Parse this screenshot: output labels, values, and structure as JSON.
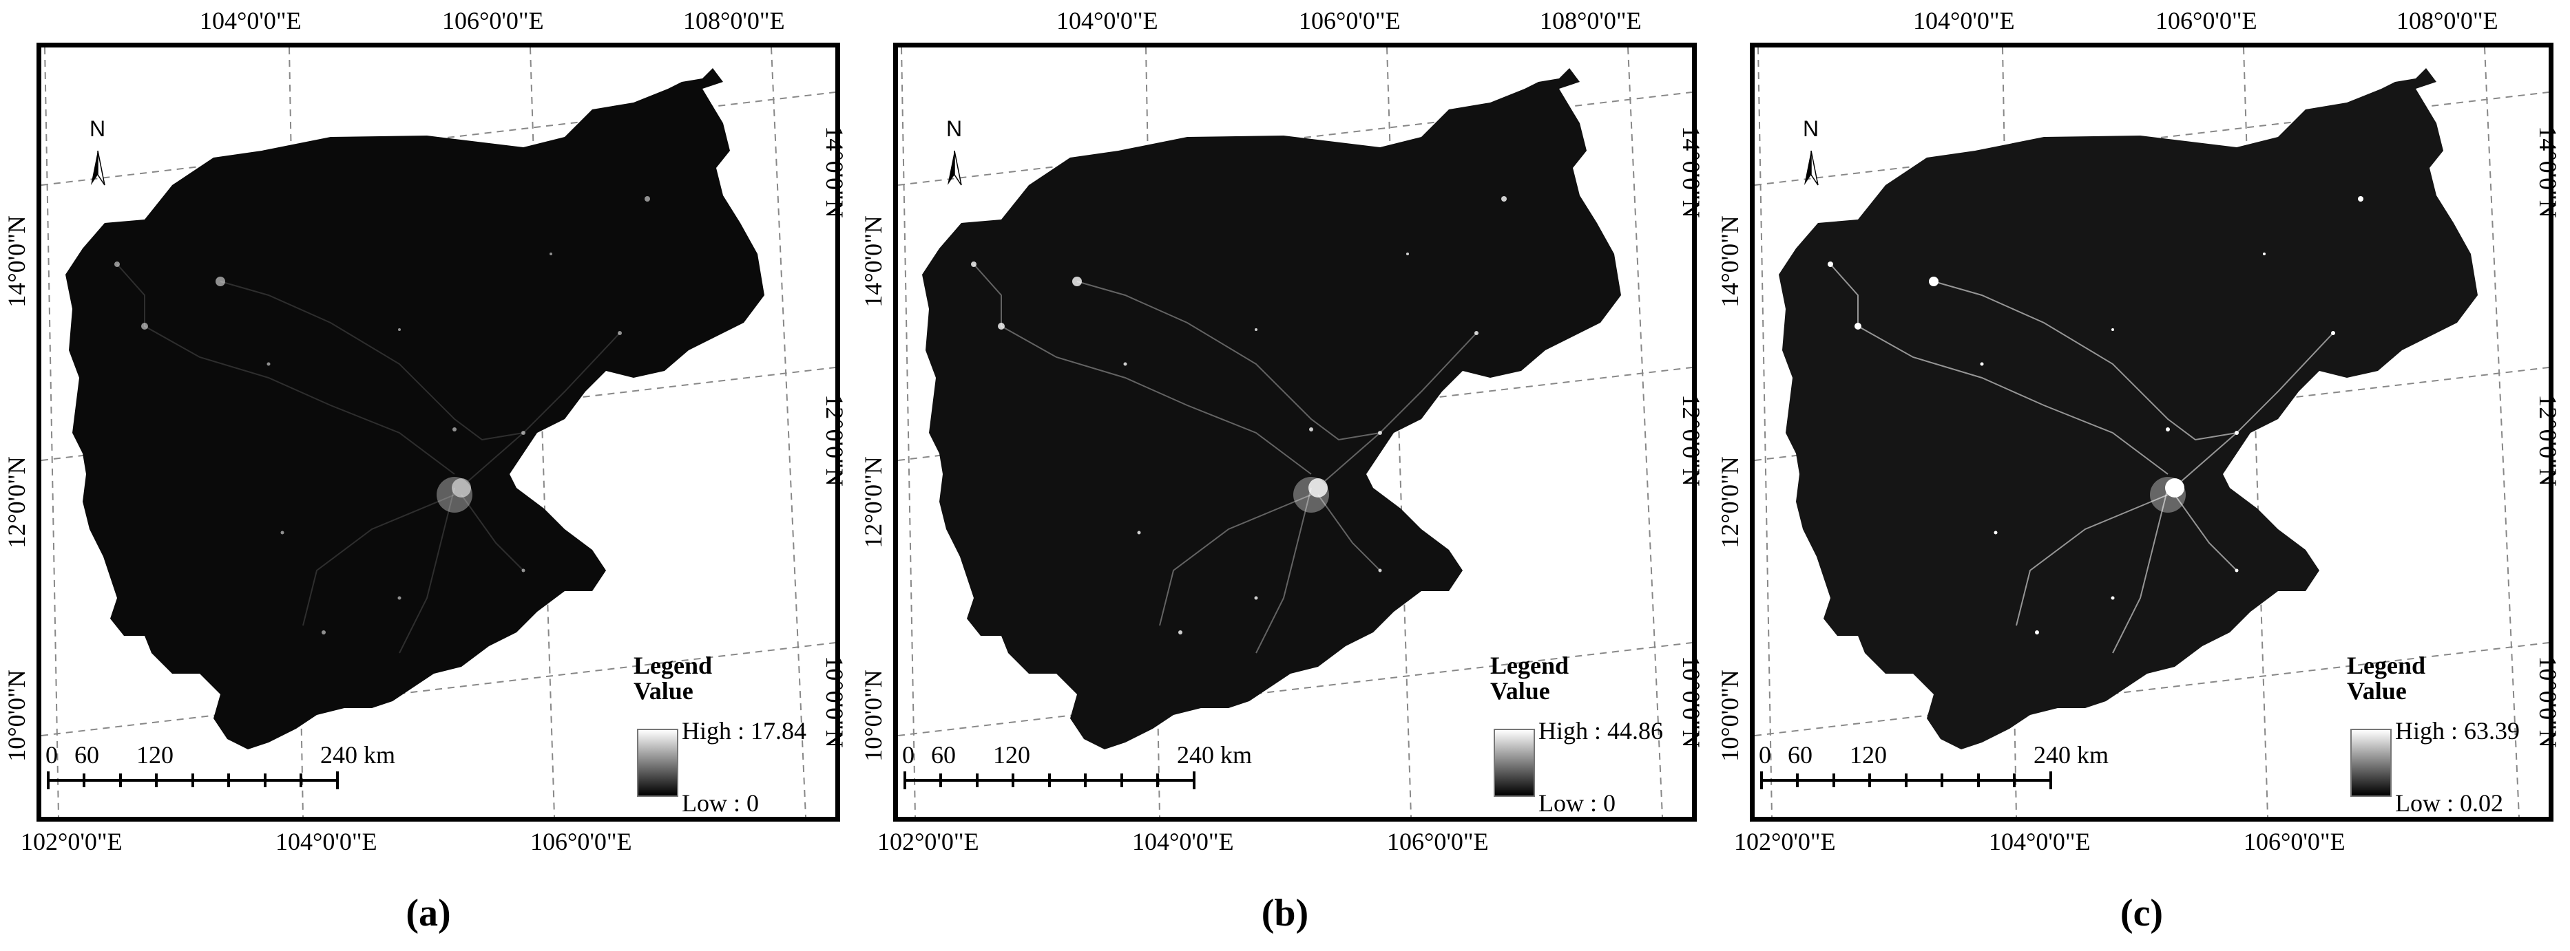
{
  "panels": [
    {
      "id": "a",
      "panel_label": "(a)",
      "legend_title": "Legend",
      "legend_subtitle": "Value",
      "legend_high": "High : 17.84",
      "legend_low": "Low : 0",
      "brightness": 0.55
    },
    {
      "id": "b",
      "panel_label": "(b)",
      "legend_title": "Legend",
      "legend_subtitle": "Value",
      "legend_high": "High : 44.86",
      "legend_low": "Low : 0",
      "brightness": 0.8
    },
    {
      "id": "c",
      "panel_label": "(c)",
      "legend_title": "Legend",
      "legend_subtitle": "Value",
      "legend_high": "High : 63.39",
      "legend_low": "Low : 0.02",
      "brightness": 1.0
    }
  ],
  "top_axis_labels": [
    "104°0'0\"E",
    "106°0'0\"E",
    "108°0'0\"E"
  ],
  "bottom_axis_labels": [
    "102°0'0\"E",
    "104°0'0\"E",
    "106°0'0\"E"
  ],
  "left_axis_labels": [
    "14°0'0\"N",
    "12°0'0\"N",
    "10°0'0\"N"
  ],
  "right_axis_labels": [
    "14°0'0\"N",
    "12°0'0\"N",
    "10°0'0\"N"
  ],
  "north_arrow_label": "N",
  "scale_bar": {
    "ticks": [
      "0",
      "60",
      "120",
      "240 km"
    ]
  }
}
